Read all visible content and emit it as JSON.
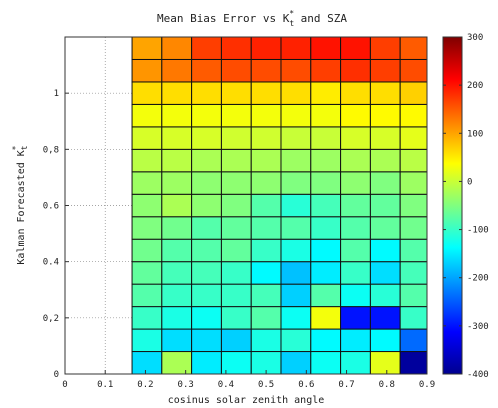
{
  "chart_data": {
    "type": "heatmap",
    "title": {
      "main": "Mean Bias Error vs K",
      "sub": "t",
      "sup": "*",
      "tail": " and SZA"
    },
    "xlabel": "cosinus solar zenith angle",
    "ylabel": {
      "main": "Kalman Forecasted K",
      "sub": "t",
      "sup": "*"
    },
    "xlim": [
      0,
      0.9
    ],
    "ylim": [
      0,
      1.2
    ],
    "x_ticks": [
      {
        "value": 0,
        "label": "0"
      },
      {
        "value": 0.1,
        "label": "0.1"
      },
      {
        "value": 0.2,
        "label": "0.2"
      },
      {
        "value": 0.3,
        "label": "0.3"
      },
      {
        "value": 0.4,
        "label": "0.4"
      },
      {
        "value": 0.5,
        "label": "0.5"
      },
      {
        "value": 0.6,
        "label": "0.6"
      },
      {
        "value": 0.7,
        "label": "0.7"
      },
      {
        "value": 0.8,
        "label": "0.8"
      },
      {
        "value": 0.9,
        "label": "0.9"
      }
    ],
    "y_ticks": [
      {
        "value": 0,
        "label": "0"
      },
      {
        "value": 0.2,
        "label": "0,2"
      },
      {
        "value": 0.4,
        "label": "0.4"
      },
      {
        "value": 0.6,
        "label": "0.6"
      },
      {
        "value": 0.8,
        "label": "0,8"
      },
      {
        "value": 1.0,
        "label": "1"
      }
    ],
    "grid": "dotted",
    "x_edges": [
      0.1667,
      0.2407,
      0.3148,
      0.3889,
      0.463,
      0.537,
      0.6111,
      0.6852,
      0.7593,
      0.8333,
      0.9
    ],
    "y_edges": [
      0,
      0.08,
      0.16,
      0.24,
      0.32,
      0.4,
      0.48,
      0.56,
      0.64,
      0.72,
      0.8,
      0.88,
      0.96,
      1.04,
      1.12,
      1.2
    ],
    "values": [
      [
        -160,
        -20,
        -150,
        -130,
        -120,
        -170,
        -130,
        -120,
        20,
        -380
      ],
      [
        -120,
        -160,
        -160,
        -170,
        -120,
        -110,
        -140,
        -150,
        -140,
        -240
      ],
      [
        -100,
        -120,
        -130,
        -100,
        -80,
        -130,
        30,
        -300,
        -300,
        -100
      ],
      [
        -80,
        -100,
        -100,
        -100,
        -90,
        -170,
        -80,
        -130,
        -110,
        -80
      ],
      [
        -70,
        -90,
        -90,
        -100,
        -140,
        -180,
        -150,
        -100,
        -160,
        -90
      ],
      [
        -60,
        -80,
        -80,
        -70,
        -100,
        -120,
        -140,
        -80,
        -140,
        -80
      ],
      [
        -50,
        -60,
        -80,
        -70,
        -80,
        -80,
        -100,
        -80,
        -70,
        -60
      ],
      [
        -40,
        -20,
        -40,
        -50,
        -80,
        -110,
        -90,
        -70,
        -70,
        -50
      ],
      [
        -30,
        -30,
        -40,
        -40,
        -40,
        -50,
        -50,
        -40,
        -50,
        -30
      ],
      [
        -10,
        -10,
        -20,
        -20,
        -20,
        -30,
        -30,
        -20,
        -20,
        -10
      ],
      [
        10,
        10,
        10,
        5,
        5,
        0,
        0,
        10,
        10,
        20
      ],
      [
        30,
        30,
        30,
        30,
        30,
        30,
        30,
        40,
        40,
        40
      ],
      [
        60,
        60,
        60,
        60,
        60,
        60,
        50,
        60,
        60,
        70
      ],
      [
        110,
        130,
        150,
        160,
        160,
        160,
        170,
        180,
        170,
        160
      ],
      [
        100,
        120,
        170,
        180,
        190,
        190,
        200,
        200,
        170,
        150
      ]
    ],
    "colorbar": {
      "range": [
        -400,
        300
      ],
      "ticks": [
        {
          "value": 300,
          "label": "300"
        },
        {
          "value": 200,
          "label": "200"
        },
        {
          "value": 100,
          "label": "100"
        },
        {
          "value": 0,
          "label": "0"
        },
        {
          "value": -100,
          "label": "-100"
        },
        {
          "value": -200,
          "label": "-200"
        },
        {
          "value": -300,
          "label": "-300"
        },
        {
          "value": -400,
          "label": "-400"
        }
      ],
      "colormap": "jet"
    }
  }
}
